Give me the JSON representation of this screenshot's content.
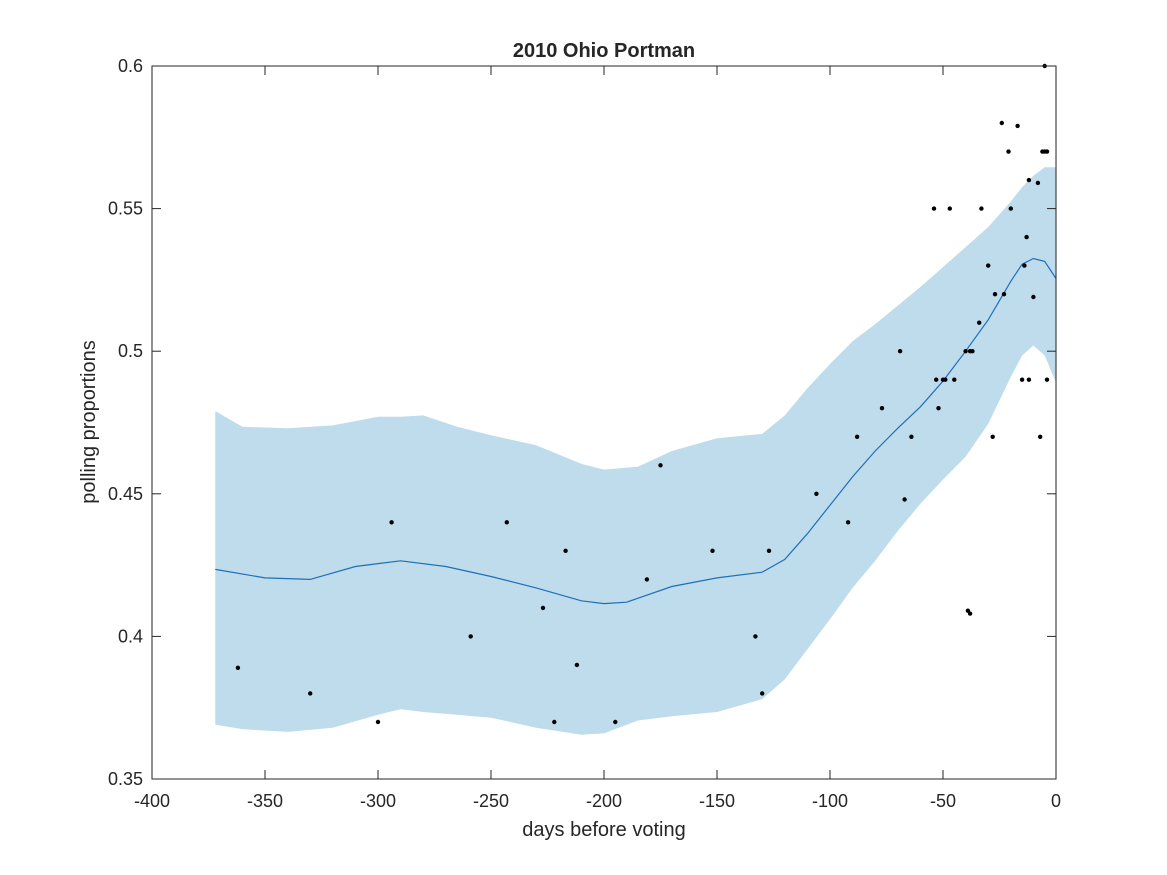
{
  "chart_data": {
    "type": "scatter",
    "title": "2010 Ohio Portman",
    "xlabel": "days before voting",
    "ylabel": "polling proportions",
    "xlim": [
      -400,
      0
    ],
    "ylim": [
      0.35,
      0.6
    ],
    "xticks": [
      -400,
      -350,
      -300,
      -250,
      -200,
      -150,
      -100,
      -50,
      0
    ],
    "yticks": [
      0.35,
      0.4,
      0.45,
      0.5,
      0.55,
      0.6
    ],
    "xtick_labels": [
      "-400",
      "-350",
      "-300",
      "-250",
      "-200",
      "-150",
      "-100",
      "-50",
      "0"
    ],
    "ytick_labels": [
      "0.35",
      "0.4",
      "0.45",
      "0.5",
      "0.55",
      "0.6"
    ],
    "grid": false,
    "colors": {
      "fit_line": "#1f6fb8",
      "confidence_band": "#bedceb",
      "points": "#000000"
    },
    "fit": {
      "x": [
        -372,
        -350,
        -330,
        -310,
        -290,
        -270,
        -250,
        -230,
        -210,
        -200,
        -190,
        -170,
        -150,
        -130,
        -120,
        -110,
        -100,
        -90,
        -80,
        -70,
        -60,
        -50,
        -40,
        -30,
        -20,
        -15,
        -10,
        -5,
        0
      ],
      "y": [
        0.4235,
        0.4205,
        0.42,
        0.4245,
        0.4265,
        0.4245,
        0.421,
        0.417,
        0.4125,
        0.4115,
        0.412,
        0.4175,
        0.4205,
        0.4225,
        0.427,
        0.436,
        0.446,
        0.456,
        0.465,
        0.473,
        0.4805,
        0.4895,
        0.5,
        0.511,
        0.5245,
        0.5305,
        0.5325,
        0.5315,
        0.5255
      ]
    },
    "band": {
      "x": [
        -372,
        -360,
        -340,
        -320,
        -300,
        -290,
        -280,
        -265,
        -250,
        -230,
        -210,
        -200,
        -185,
        -170,
        -150,
        -130,
        -120,
        -110,
        -100,
        -90,
        -80,
        -70,
        -60,
        -50,
        -40,
        -30,
        -20,
        -15,
        -10,
        -5,
        0
      ],
      "upper": [
        0.479,
        0.4735,
        0.473,
        0.474,
        0.477,
        0.477,
        0.4775,
        0.4735,
        0.4705,
        0.467,
        0.4605,
        0.4585,
        0.4595,
        0.465,
        0.4695,
        0.471,
        0.4775,
        0.487,
        0.4955,
        0.5035,
        0.5095,
        0.516,
        0.5225,
        0.5295,
        0.5365,
        0.5435,
        0.5525,
        0.5575,
        0.5615,
        0.5645,
        0.5645
      ],
      "lower": [
        0.369,
        0.3675,
        0.3665,
        0.368,
        0.3725,
        0.3745,
        0.3735,
        0.3725,
        0.3715,
        0.368,
        0.3655,
        0.366,
        0.3705,
        0.372,
        0.3735,
        0.378,
        0.385,
        0.3955,
        0.406,
        0.417,
        0.4265,
        0.437,
        0.4465,
        0.455,
        0.463,
        0.4745,
        0.491,
        0.4985,
        0.502,
        0.4985,
        0.489
      ]
    },
    "points": {
      "x": [
        -362,
        -330,
        -300,
        -294,
        -259,
        -243,
        -227,
        -222,
        -217,
        -212,
        -195,
        -181,
        -175,
        -152,
        -133,
        -130,
        -127,
        -106,
        -92,
        -88,
        -77,
        -69,
        -67,
        -64,
        -54,
        -53,
        -52,
        -50,
        -49,
        -47,
        -45,
        -40,
        -39,
        -38,
        -38,
        -37,
        -34,
        -33,
        -30,
        -28,
        -27,
        -24,
        -23,
        -21,
        -20,
        -17,
        -15,
        -14,
        -13,
        -12,
        -12,
        -10,
        -8,
        -7,
        -6,
        -5,
        -5,
        -4,
        -4
      ],
      "y": [
        0.389,
        0.38,
        0.37,
        0.44,
        0.4,
        0.44,
        0.41,
        0.37,
        0.43,
        0.39,
        0.37,
        0.42,
        0.46,
        0.43,
        0.4,
        0.38,
        0.43,
        0.45,
        0.44,
        0.47,
        0.48,
        0.5,
        0.448,
        0.47,
        0.55,
        0.49,
        0.48,
        0.49,
        0.49,
        0.55,
        0.49,
        0.5,
        0.409,
        0.408,
        0.5,
        0.5,
        0.51,
        0.55,
        0.53,
        0.47,
        0.52,
        0.58,
        0.52,
        0.57,
        0.55,
        0.579,
        0.49,
        0.53,
        0.54,
        0.56,
        0.49,
        0.519,
        0.559,
        0.47,
        0.57,
        0.57,
        0.6,
        0.49,
        0.57
      ]
    }
  }
}
